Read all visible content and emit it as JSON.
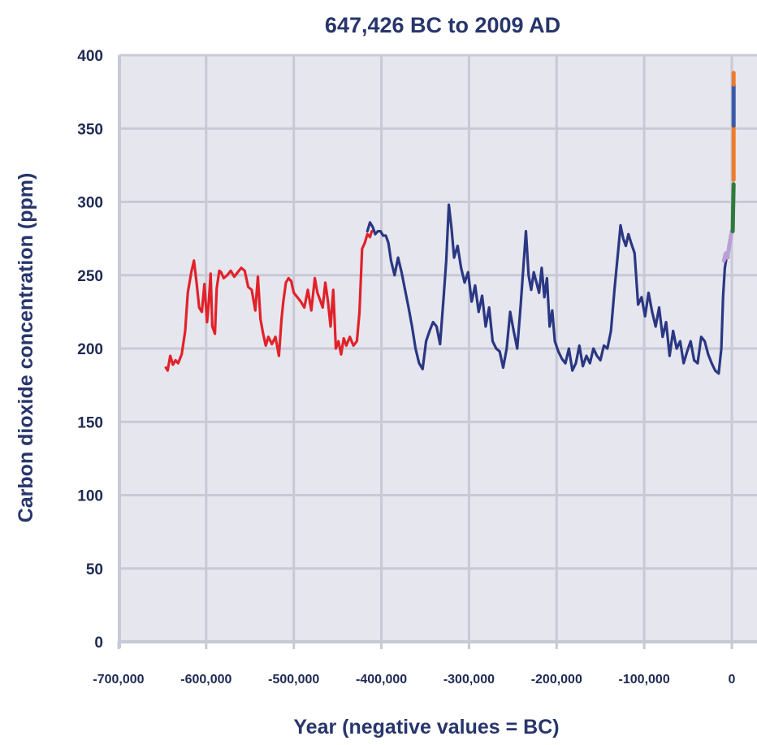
{
  "chart_data": {
    "type": "line",
    "title": "647,426 BC to 2009 AD",
    "xlabel": "Year (negative values = BC)",
    "ylabel": "Carbon dioxide concentration (ppm)",
    "xlim": [
      -700000,
      0
    ],
    "ylim": [
      0,
      400
    ],
    "x_ticks": [
      -700000,
      -600000,
      -500000,
      -400000,
      -300000,
      -200000,
      -100000,
      0
    ],
    "x_tick_labels": [
      "-700,000",
      "-600,000",
      "-500,000",
      "-400,000",
      "-300,000",
      "-200,000",
      "-100,000",
      "0"
    ],
    "y_ticks": [
      0,
      50,
      100,
      150,
      200,
      250,
      300,
      350,
      400
    ],
    "y_tick_labels": [
      "0",
      "50",
      "100",
      "150",
      "200",
      "250",
      "300",
      "350",
      "400"
    ],
    "grid": true,
    "plot_background": "#e6e6ee",
    "grid_color": "#c8c9d6",
    "text_color": "#27356b",
    "series": [
      {
        "color": "#e1222a",
        "x": [
          -646000,
          -644000,
          -641000,
          -638000,
          -635000,
          -632000,
          -628000,
          -624000,
          -621000,
          -617000,
          -614000,
          -611000,
          -608000,
          -605000,
          -602000,
          -599000,
          -597000,
          -595000,
          -593000,
          -590000,
          -588000,
          -585000,
          -583000,
          -580000,
          -576000,
          -572000,
          -568000,
          -564000,
          -560000,
          -556000,
          -552000,
          -548000,
          -544000,
          -541000,
          -538000,
          -535000,
          -532000,
          -529000,
          -525000,
          -521000,
          -517000,
          -514000,
          -512000,
          -509000,
          -506000,
          -503000,
          -500000,
          -496000,
          -492000,
          -488000,
          -484000,
          -480000,
          -476000,
          -473000,
          -470000,
          -467000,
          -464000,
          -461000,
          -458000,
          -455000,
          -452000,
          -449000,
          -446000,
          -443000,
          -440000,
          -436000,
          -432000,
          -428000,
          -425000,
          -422000,
          -419000,
          -416000,
          -413000,
          -411000
        ],
        "values": [
          187,
          185,
          195,
          189,
          192,
          190,
          196,
          212,
          238,
          252,
          260,
          245,
          228,
          225,
          244,
          218,
          232,
          251,
          215,
          210,
          241,
          253,
          252,
          248,
          250,
          253,
          249,
          252,
          255,
          253,
          242,
          240,
          226,
          249,
          220,
          210,
          202,
          208,
          203,
          208,
          195,
          220,
          232,
          245,
          248,
          246,
          238,
          235,
          232,
          228,
          240,
          226,
          248,
          238,
          233,
          228,
          245,
          232,
          215,
          240,
          200,
          205,
          196,
          207,
          202,
          208,
          202,
          205,
          225,
          268,
          272,
          278,
          276,
          280
        ]
      },
      {
        "color": "#2a3782",
        "x": [
          -416000,
          -413000,
          -410000,
          -407000,
          -404000,
          -401000,
          -398000,
          -395000,
          -392000,
          -389000,
          -385000,
          -381000,
          -377000,
          -373000,
          -369000,
          -365000,
          -361000,
          -357000,
          -353000,
          -349000,
          -345000,
          -341000,
          -337000,
          -333000,
          -329000,
          -326000,
          -323000,
          -320000,
          -317000,
          -313000,
          -309000,
          -305000,
          -301000,
          -297000,
          -293000,
          -289000,
          -285000,
          -281000,
          -277000,
          -273000,
          -269000,
          -265000,
          -261000,
          -257000,
          -253000,
          -249000,
          -245000,
          -241000,
          -238000,
          -235000,
          -232000,
          -229000,
          -226000,
          -223000,
          -220000,
          -217000,
          -214000,
          -211000,
          -208000,
          -205000,
          -202000,
          -198000,
          -194000,
          -190000,
          -186000,
          -182000,
          -178000,
          -174000,
          -170000,
          -166000,
          -162000,
          -158000,
          -154000,
          -150000,
          -146000,
          -142000,
          -138000,
          -134000,
          -130000,
          -127000,
          -124000,
          -121000,
          -118000,
          -115000,
          -111000,
          -107000,
          -103000,
          -99000,
          -95000,
          -91000,
          -87000,
          -83000,
          -79000,
          -75000,
          -71000,
          -67000,
          -63000,
          -59000,
          -55000,
          -51000,
          -47000,
          -43000,
          -39000,
          -35000,
          -31000,
          -27000,
          -23000,
          -19000,
          -15000,
          -12000,
          -10000,
          -8000,
          -6000,
          -4000
        ],
        "values": [
          280,
          286,
          283,
          278,
          280,
          280,
          277,
          277,
          272,
          260,
          250,
          262,
          252,
          240,
          228,
          215,
          200,
          190,
          186,
          205,
          212,
          218,
          215,
          203,
          235,
          260,
          298,
          282,
          262,
          270,
          255,
          245,
          252,
          232,
          243,
          225,
          236,
          215,
          228,
          205,
          200,
          198,
          187,
          200,
          225,
          212,
          200,
          230,
          255,
          280,
          250,
          240,
          252,
          245,
          238,
          255,
          235,
          248,
          215,
          226,
          205,
          198,
          193,
          190,
          200,
          185,
          190,
          202,
          188,
          195,
          190,
          200,
          195,
          192,
          202,
          200,
          212,
          240,
          265,
          284,
          275,
          270,
          278,
          272,
          265,
          230,
          235,
          222,
          238,
          225,
          215,
          228,
          208,
          218,
          195,
          212,
          200,
          205,
          190,
          198,
          205,
          192,
          190,
          208,
          205,
          196,
          190,
          185,
          183,
          200,
          235,
          255,
          262,
          262
        ]
      },
      {
        "color": "#b9a0d6",
        "x": [
          -9000,
          -7000,
          -5000,
          -3000,
          -1500,
          0
        ],
        "values": [
          260,
          265,
          262,
          270,
          275,
          280
        ]
      },
      {
        "color": "#2f7a3b",
        "x": [
          1000,
          1500,
          2000
        ],
        "values": [
          280,
          295,
          312
        ]
      },
      {
        "color": "#ee7b2c",
        "x": [
          2000,
          2000,
          2000
        ],
        "values": [
          315,
          335,
          352
        ]
      },
      {
        "color": "#3b5aa8",
        "x": [
          2000,
          2000
        ],
        "values": [
          352,
          380
        ]
      },
      {
        "color": "#ee7b2c",
        "x": [
          2000,
          2000
        ],
        "values": [
          380,
          388
        ]
      }
    ]
  }
}
